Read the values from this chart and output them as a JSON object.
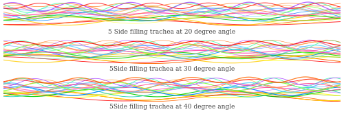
{
  "fig_width": 5.0,
  "fig_height": 1.66,
  "dpi": 100,
  "background_color": "#ffffff",
  "panel_bg": "#b0c0d8",
  "captions": [
    "5 Side filling trachea at 20 degree angle",
    "5Side filling trachea at 30 degree angle",
    "5Side filling trachea at 40 degree angle"
  ],
  "caption_fontsize": 6.5,
  "caption_color": "#404040",
  "colors": [
    "#ff0000",
    "#ff6600",
    "#ffcc00",
    "#ffff00",
    "#99cc00",
    "#00cc00",
    "#00ccaa",
    "#0088ff",
    "#cc44ff",
    "#ff44aa",
    "#ff8844",
    "#44ccff",
    "#88ff44",
    "#ff4488",
    "#4488ff",
    "#ffaa44",
    "#44ffaa",
    "#aa44ff"
  ],
  "angles_deg": [
    20,
    30,
    40
  ],
  "n_lines": 20,
  "seed": 42
}
